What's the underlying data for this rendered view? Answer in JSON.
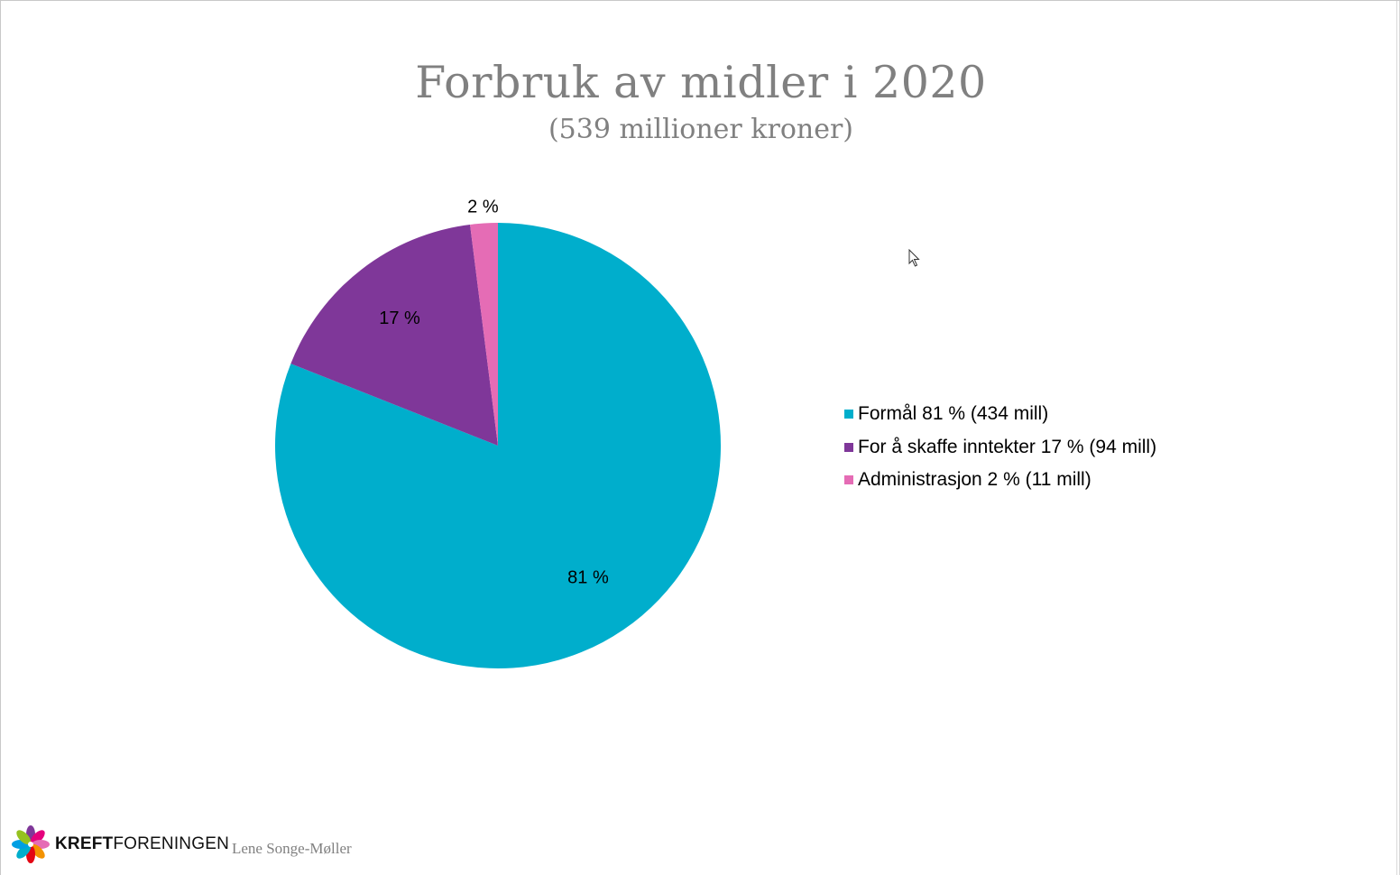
{
  "title": "Forbruk av midler i 2020",
  "subtitle": "(539 millioner kroner)",
  "chart_data": {
    "type": "pie",
    "slices": [
      {
        "label": "81 %",
        "legend": "Formål 81 % (434 mill)",
        "value": 81,
        "color": "#00AECC"
      },
      {
        "label": "17 %",
        "legend": "For å skaffe inntekter 17 % (94 mill)",
        "value": 17,
        "color": "#7F3799"
      },
      {
        "label": "2 %",
        "legend": "Administrasjon 2 % (11 mill)",
        "value": 2,
        "color": "#E56CB5"
      }
    ],
    "start": "12 o'clock",
    "direction": "clockwise",
    "legend_position": "right"
  },
  "footer": {
    "logo_bold": "KREFT",
    "logo_regular": "FORENINGEN",
    "author": "Lene Songe-Møller"
  }
}
